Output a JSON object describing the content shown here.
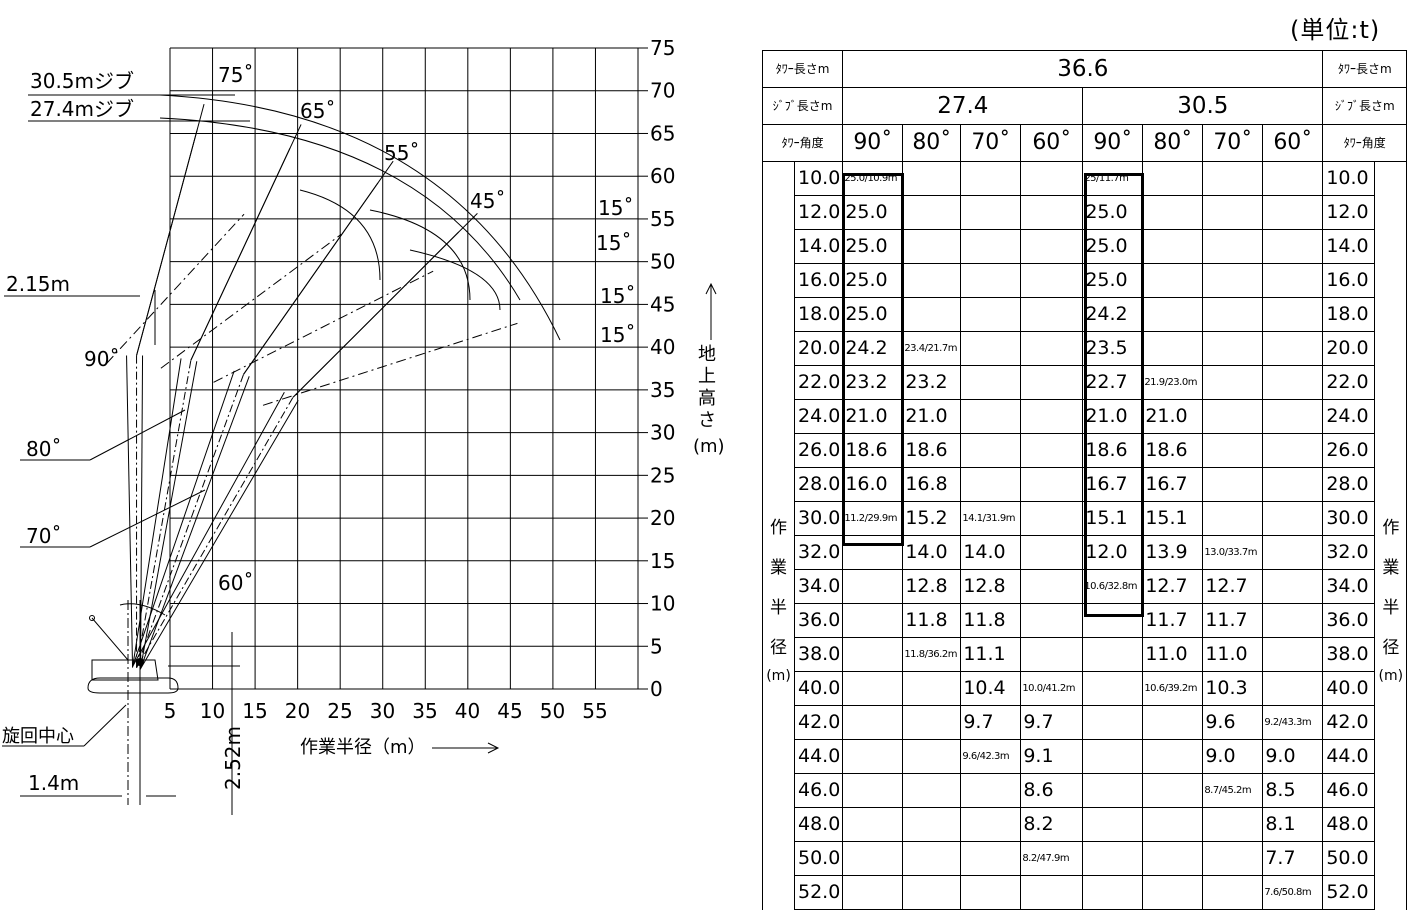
{
  "unit": "(単位:t)",
  "diagram": {
    "x_axis_ticks": [
      "5",
      "10",
      "15",
      "20",
      "25",
      "30",
      "35",
      "40",
      "45",
      "50",
      "55"
    ],
    "y_axis_ticks": [
      "75",
      "70",
      "65",
      "60",
      "55",
      "50",
      "45",
      "40",
      "35",
      "30",
      "25",
      "20",
      "15",
      "10",
      "5",
      "0"
    ],
    "x_axis_label": "作業半径（m）",
    "y_axis_label": "地上高さ",
    "y_axis_unit": "(m)",
    "jib_labels": [
      "30.5mジブ",
      "27.4mジブ"
    ],
    "tower_angle_labels": [
      "90˚",
      "80˚",
      "70˚",
      "60˚"
    ],
    "jib_angle_labels": [
      "75˚",
      "65˚",
      "55˚",
      "45˚"
    ],
    "offset_labels": [
      "15˚",
      "15˚",
      "15˚",
      "15˚"
    ],
    "dimension_labels": {
      "top_offset": "2.15m",
      "swing_center": "旋回中心",
      "rear_offset": "1.4m",
      "foot_height": "2.52m"
    }
  },
  "table": {
    "header": {
      "tower_length_label": "ﾀﾜｰ長さm",
      "tower_length_value": "36.6",
      "jib_length_label": "ｼﾞﾌﾞ長さm",
      "jib_lengths": [
        "27.4",
        "30.5"
      ],
      "tower_angle_label": "ﾀﾜｰ角度",
      "angles": [
        "90˚",
        "80˚",
        "70˚",
        "60˚",
        "90˚",
        "80˚",
        "70˚",
        "60˚"
      ]
    },
    "side_label": [
      "作",
      "業",
      "半",
      "径",
      "(m)"
    ],
    "rows": [
      {
        "r": "10.0",
        "v": [
          "25.0/10.9m",
          "",
          "",
          "",
          "25/11.7m",
          "",
          "",
          ""
        ]
      },
      {
        "r": "12.0",
        "v": [
          "25.0",
          "",
          "",
          "",
          "25.0",
          "",
          "",
          ""
        ]
      },
      {
        "r": "14.0",
        "v": [
          "25.0",
          "",
          "",
          "",
          "25.0",
          "",
          "",
          ""
        ]
      },
      {
        "r": "16.0",
        "v": [
          "25.0",
          "",
          "",
          "",
          "25.0",
          "",
          "",
          ""
        ]
      },
      {
        "r": "18.0",
        "v": [
          "25.0",
          "",
          "",
          "",
          "24.2",
          "",
          "",
          ""
        ]
      },
      {
        "r": "20.0",
        "v": [
          "24.2",
          "23.4/21.7m",
          "",
          "",
          "23.5",
          "",
          "",
          ""
        ]
      },
      {
        "r": "22.0",
        "v": [
          "23.2",
          "23.2",
          "",
          "",
          "22.7",
          "21.9/23.0m",
          "",
          ""
        ]
      },
      {
        "r": "24.0",
        "v": [
          "21.0",
          "21.0",
          "",
          "",
          "21.0",
          "21.0",
          "",
          ""
        ]
      },
      {
        "r": "26.0",
        "v": [
          "18.6",
          "18.6",
          "",
          "",
          "18.6",
          "18.6",
          "",
          ""
        ]
      },
      {
        "r": "28.0",
        "v": [
          "16.0",
          "16.8",
          "",
          "",
          "16.7",
          "16.7",
          "",
          ""
        ]
      },
      {
        "r": "30.0",
        "v": [
          "11.2/29.9m",
          "15.2",
          "14.1/31.9m",
          "",
          "15.1",
          "15.1",
          "",
          ""
        ]
      },
      {
        "r": "32.0",
        "v": [
          "",
          "14.0",
          "14.0",
          "",
          "12.0",
          "13.9",
          "13.0/33.7m",
          ""
        ]
      },
      {
        "r": "34.0",
        "v": [
          "",
          "12.8",
          "12.8",
          "",
          "10.6/32.8m",
          "12.7",
          "12.7",
          ""
        ]
      },
      {
        "r": "36.0",
        "v": [
          "",
          "11.8",
          "11.8",
          "",
          "",
          "11.7",
          "11.7",
          ""
        ]
      },
      {
        "r": "38.0",
        "v": [
          "",
          "11.8/36.2m",
          "11.1",
          "",
          "",
          "11.0",
          "11.0",
          ""
        ]
      },
      {
        "r": "40.0",
        "v": [
          "",
          "",
          "10.4",
          "10.0/41.2m",
          "",
          "10.6/39.2m",
          "10.3",
          ""
        ]
      },
      {
        "r": "42.0",
        "v": [
          "",
          "",
          "9.7",
          "9.7",
          "",
          "",
          "9.6",
          "9.2/43.3m"
        ]
      },
      {
        "r": "44.0",
        "v": [
          "",
          "",
          "9.6/42.3m",
          "9.1",
          "",
          "",
          "9.0",
          "9.0"
        ]
      },
      {
        "r": "46.0",
        "v": [
          "",
          "",
          "",
          "8.6",
          "",
          "",
          "8.7/45.2m",
          "8.5"
        ]
      },
      {
        "r": "48.0",
        "v": [
          "",
          "",
          "",
          "8.2",
          "",
          "",
          "",
          "8.1"
        ]
      },
      {
        "r": "50.0",
        "v": [
          "",
          "",
          "",
          "8.2/47.9m",
          "",
          "",
          "",
          "7.7"
        ]
      },
      {
        "r": "52.0",
        "v": [
          "",
          "",
          "",
          "",
          "",
          "",
          "",
          "7.6/50.8m"
        ]
      }
    ]
  }
}
